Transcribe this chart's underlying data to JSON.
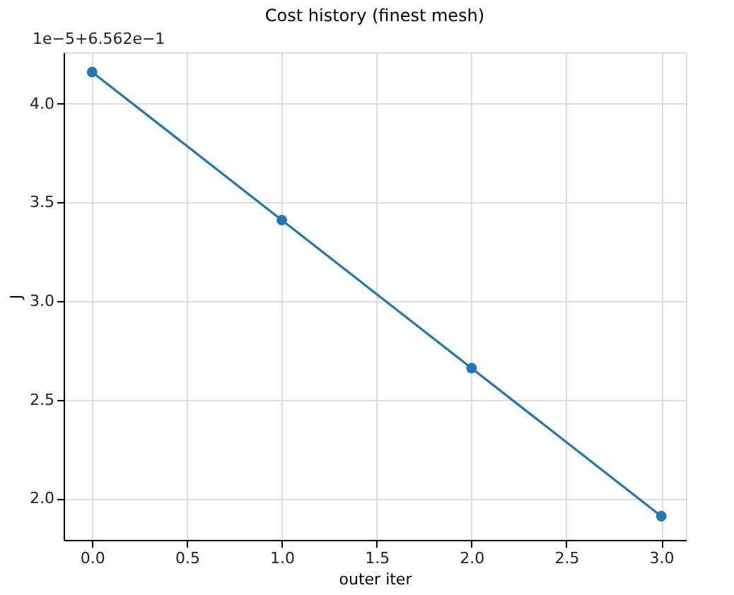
{
  "chart_data": {
    "type": "line",
    "title": "Cost history (finest mesh)",
    "xlabel": "outer iter",
    "ylabel": "J",
    "annotations": [
      "1e−5+6.562e−1"
    ],
    "x": [
      0,
      1,
      2,
      3
    ],
    "series": [
      {
        "color": "#1f77b4",
        "values": [
          4.16,
          3.41,
          2.66,
          1.91
        ]
      }
    ],
    "xlim": [
      -0.15,
      3.13
    ],
    "xticks": [
      {
        "value": 0,
        "label": "0.0"
      },
      0.5,
      {
        "value": 1,
        "label": "1.0"
      },
      1.5,
      {
        "value": 2,
        "label": "2.0"
      },
      2.5,
      {
        "value": 3,
        "label": "3.0"
      }
    ],
    "ylim": [
      1.79,
      4.26
    ],
    "yticks": [
      {
        "value": 2,
        "label": "2.0"
      },
      2.5,
      {
        "value": 3,
        "label": "3.0"
      },
      3.5,
      {
        "value": 4,
        "label": "4.0"
      }
    ],
    "grid": true,
    "marker": "circle",
    "line_style": "solid"
  }
}
